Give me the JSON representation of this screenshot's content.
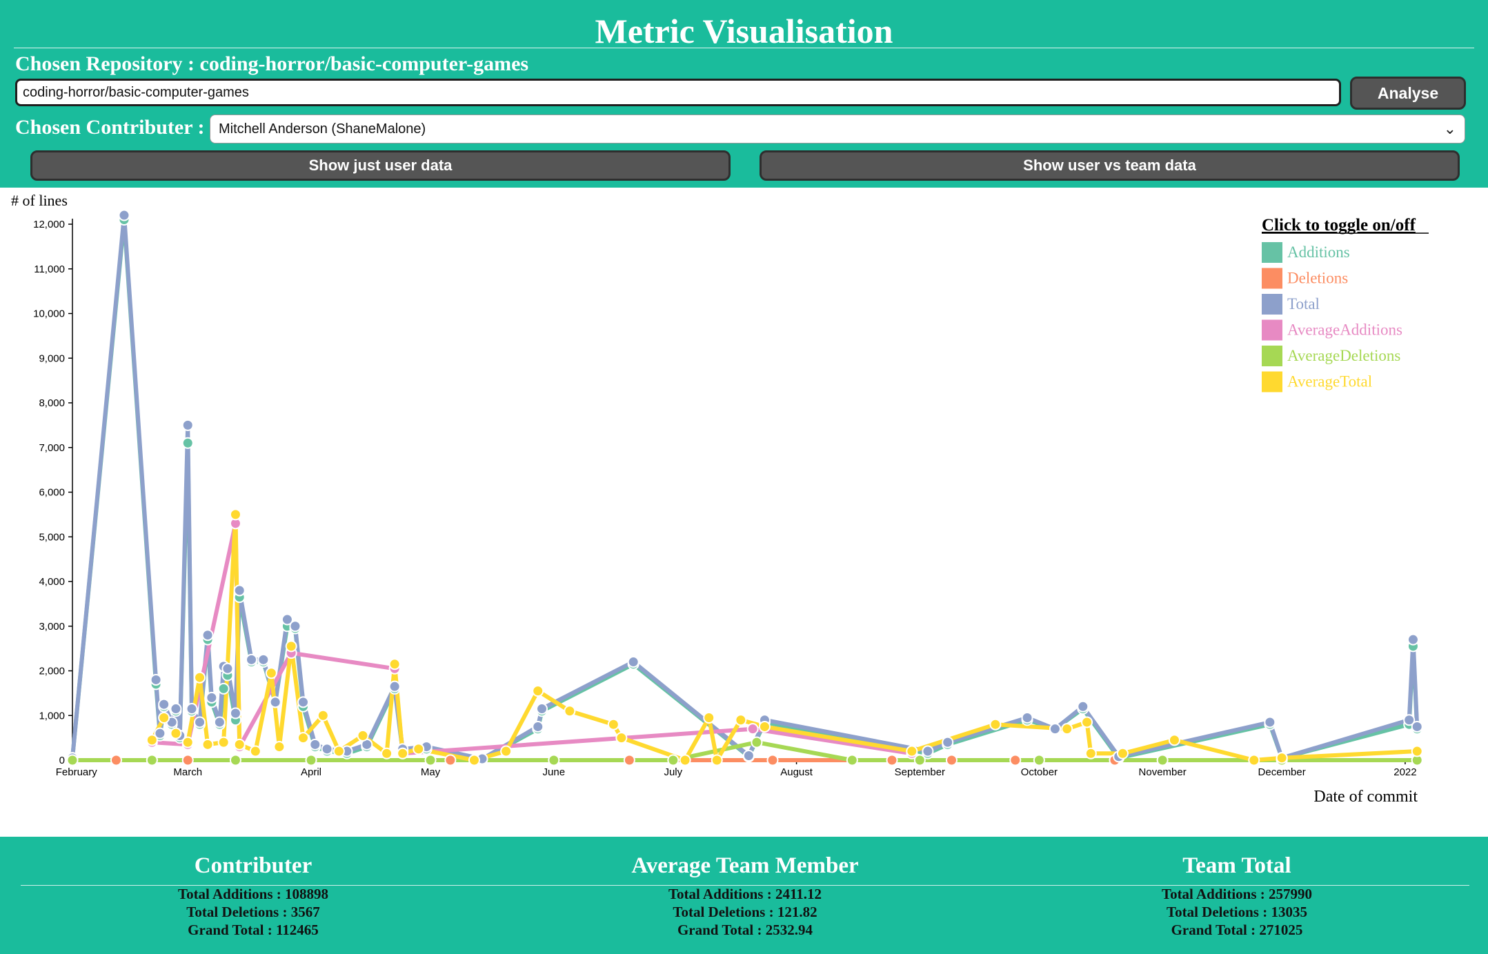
{
  "header": {
    "title": "Metric Visualisation",
    "repo_prefix": "Chosen Repository : ",
    "repo_name": "coding-horror/basic-computer-games",
    "repo_input_value": "coding-horror/basic-computer-games",
    "analyse_label": "Analyse",
    "contributor_label": "Chosen Contributer :",
    "contributor_selected": "Mitchell Anderson (ShaneMalone)",
    "show_user_label": "Show just user data",
    "show_team_label": "Show user vs team data"
  },
  "colors": {
    "accent": "#1abc9c",
    "button": "#555555"
  },
  "chart_data": {
    "type": "line",
    "ylabel": "# of lines",
    "xlabel": "Date of commit",
    "ylim": [
      0,
      12000
    ],
    "yticks": [
      0,
      1000,
      2000,
      3000,
      4000,
      5000,
      6000,
      7000,
      8000,
      9000,
      10000,
      11000,
      12000
    ],
    "x_domain": [
      "2021-01-31",
      "2022-01-05"
    ],
    "x_ticks": [
      {
        "date": "2021-02-01",
        "label": "February"
      },
      {
        "date": "2021-03-01",
        "label": "March"
      },
      {
        "date": "2021-04-01",
        "label": "April"
      },
      {
        "date": "2021-05-01",
        "label": "May"
      },
      {
        "date": "2021-06-01",
        "label": "June"
      },
      {
        "date": "2021-07-01",
        "label": "July"
      },
      {
        "date": "2021-08-01",
        "label": "August"
      },
      {
        "date": "2021-09-01",
        "label": "September"
      },
      {
        "date": "2021-10-01",
        "label": "October"
      },
      {
        "date": "2021-11-01",
        "label": "November"
      },
      {
        "date": "2021-12-01",
        "label": "December"
      },
      {
        "date": "2022-01-01",
        "label": "2022"
      }
    ],
    "legend_title": "Click to toggle on/off",
    "legend_position": "top-right",
    "series": [
      {
        "name": "Additions",
        "color": "#66c2a5",
        "points": [
          [
            "2021-01-31",
            50
          ],
          [
            "2021-02-13",
            12100
          ],
          [
            "2021-02-21",
            1700
          ],
          [
            "2021-02-22",
            550
          ],
          [
            "2021-02-23",
            1200
          ],
          [
            "2021-02-25",
            800
          ],
          [
            "2021-02-26",
            1100
          ],
          [
            "2021-02-27",
            500
          ],
          [
            "2021-03-01",
            7100
          ],
          [
            "2021-03-02",
            1100
          ],
          [
            "2021-03-04",
            800
          ],
          [
            "2021-03-06",
            2700
          ],
          [
            "2021-03-07",
            1300
          ],
          [
            "2021-03-09",
            800
          ],
          [
            "2021-03-10",
            1600
          ],
          [
            "2021-03-11",
            1900
          ],
          [
            "2021-03-13",
            900
          ],
          [
            "2021-03-14",
            3650
          ],
          [
            "2021-03-17",
            2200
          ],
          [
            "2021-03-20",
            2200
          ],
          [
            "2021-03-23",
            1300
          ],
          [
            "2021-03-26",
            3000
          ],
          [
            "2021-03-28",
            2950
          ],
          [
            "2021-03-30",
            1200
          ],
          [
            "2021-04-02",
            300
          ],
          [
            "2021-04-05",
            200
          ],
          [
            "2021-04-10",
            150
          ],
          [
            "2021-04-15",
            300
          ],
          [
            "2021-04-22",
            1600
          ],
          [
            "2021-04-24",
            200
          ],
          [
            "2021-04-30",
            250
          ],
          [
            "2021-05-14",
            20
          ],
          [
            "2021-05-28",
            700
          ],
          [
            "2021-05-29",
            1100
          ],
          [
            "2021-06-21",
            2150
          ],
          [
            "2021-07-20",
            80
          ],
          [
            "2021-07-24",
            850
          ],
          [
            "2021-09-03",
            150
          ],
          [
            "2021-09-08",
            350
          ],
          [
            "2021-09-28",
            900
          ],
          [
            "2021-10-05",
            700
          ],
          [
            "2021-10-12",
            1150
          ],
          [
            "2021-10-21",
            50
          ],
          [
            "2021-11-28",
            800
          ],
          [
            "2021-12-01",
            50
          ],
          [
            "2022-01-02",
            800
          ],
          [
            "2022-01-03",
            2550
          ],
          [
            "2022-01-04",
            700
          ]
        ]
      },
      {
        "name": "Deletions",
        "color": "#fc8d62",
        "points": [
          [
            "2021-01-31",
            0
          ],
          [
            "2021-02-11",
            0
          ],
          [
            "2021-02-20",
            0
          ],
          [
            "2021-03-01",
            0
          ],
          [
            "2021-04-01",
            0
          ],
          [
            "2021-05-06",
            0
          ],
          [
            "2021-06-20",
            0
          ],
          [
            "2021-07-26",
            0
          ],
          [
            "2021-08-25",
            0
          ],
          [
            "2021-09-09",
            0
          ],
          [
            "2021-09-25",
            0
          ],
          [
            "2021-10-20",
            0
          ],
          [
            "2021-12-01",
            0
          ],
          [
            "2022-01-04",
            0
          ]
        ]
      },
      {
        "name": "Total",
        "color": "#8da0cb",
        "points": [
          [
            "2021-01-31",
            50
          ],
          [
            "2021-02-13",
            12200
          ],
          [
            "2021-02-21",
            1800
          ],
          [
            "2021-02-22",
            600
          ],
          [
            "2021-02-23",
            1250
          ],
          [
            "2021-02-25",
            850
          ],
          [
            "2021-02-26",
            1150
          ],
          [
            "2021-02-27",
            550
          ],
          [
            "2021-03-01",
            7500
          ],
          [
            "2021-03-02",
            1150
          ],
          [
            "2021-03-04",
            850
          ],
          [
            "2021-03-06",
            2800
          ],
          [
            "2021-03-07",
            1400
          ],
          [
            "2021-03-09",
            850
          ],
          [
            "2021-03-10",
            2100
          ],
          [
            "2021-03-11",
            2050
          ],
          [
            "2021-03-13",
            1050
          ],
          [
            "2021-03-14",
            3800
          ],
          [
            "2021-03-17",
            2250
          ],
          [
            "2021-03-20",
            2250
          ],
          [
            "2021-03-23",
            1300
          ],
          [
            "2021-03-26",
            3150
          ],
          [
            "2021-03-28",
            3000
          ],
          [
            "2021-03-30",
            1300
          ],
          [
            "2021-04-02",
            350
          ],
          [
            "2021-04-05",
            250
          ],
          [
            "2021-04-10",
            200
          ],
          [
            "2021-04-15",
            350
          ],
          [
            "2021-04-22",
            1650
          ],
          [
            "2021-04-24",
            250
          ],
          [
            "2021-04-30",
            300
          ],
          [
            "2021-05-14",
            30
          ],
          [
            "2021-05-28",
            750
          ],
          [
            "2021-05-29",
            1150
          ],
          [
            "2021-06-21",
            2200
          ],
          [
            "2021-07-20",
            100
          ],
          [
            "2021-07-24",
            900
          ],
          [
            "2021-09-03",
            200
          ],
          [
            "2021-09-08",
            400
          ],
          [
            "2021-09-28",
            950
          ],
          [
            "2021-10-05",
            700
          ],
          [
            "2021-10-12",
            1200
          ],
          [
            "2021-10-21",
            80
          ],
          [
            "2021-11-28",
            850
          ],
          [
            "2021-12-01",
            50
          ],
          [
            "2022-01-02",
            900
          ],
          [
            "2022-01-03",
            2700
          ],
          [
            "2022-01-04",
            750
          ]
        ]
      },
      {
        "name": "AverageAdditions",
        "color": "#e78ac3",
        "points": [
          [
            "2021-02-20",
            400
          ],
          [
            "2021-03-01",
            350
          ],
          [
            "2021-03-13",
            5300
          ],
          [
            "2021-03-14",
            300
          ],
          [
            "2021-03-27",
            2400
          ],
          [
            "2021-04-22",
            2050
          ],
          [
            "2021-04-24",
            150
          ],
          [
            "2021-07-21",
            700
          ],
          [
            "2021-08-30",
            150
          ]
        ]
      },
      {
        "name": "AverageDeletions",
        "color": "#a6d854",
        "points": [
          [
            "2021-01-31",
            0
          ],
          [
            "2021-02-20",
            0
          ],
          [
            "2021-03-13",
            0
          ],
          [
            "2021-04-01",
            0
          ],
          [
            "2021-05-01",
            0
          ],
          [
            "2021-06-01",
            0
          ],
          [
            "2021-07-01",
            0
          ],
          [
            "2021-07-22",
            400
          ],
          [
            "2021-08-15",
            0
          ],
          [
            "2021-09-01",
            0
          ],
          [
            "2021-10-01",
            0
          ],
          [
            "2021-11-01",
            0
          ],
          [
            "2021-12-01",
            0
          ],
          [
            "2022-01-04",
            0
          ]
        ]
      },
      {
        "name": "AverageTotal",
        "color": "#ffd92f",
        "points": [
          [
            "2021-02-20",
            450
          ],
          [
            "2021-02-23",
            950
          ],
          [
            "2021-02-26",
            600
          ],
          [
            "2021-03-01",
            400
          ],
          [
            "2021-03-04",
            1850
          ],
          [
            "2021-03-06",
            350
          ],
          [
            "2021-03-10",
            400
          ],
          [
            "2021-03-13",
            5500
          ],
          [
            "2021-03-14",
            350
          ],
          [
            "2021-03-18",
            200
          ],
          [
            "2021-03-22",
            1950
          ],
          [
            "2021-03-24",
            300
          ],
          [
            "2021-03-27",
            2550
          ],
          [
            "2021-03-30",
            500
          ],
          [
            "2021-04-04",
            1000
          ],
          [
            "2021-04-08",
            200
          ],
          [
            "2021-04-14",
            550
          ],
          [
            "2021-04-20",
            150
          ],
          [
            "2021-04-22",
            2150
          ],
          [
            "2021-04-24",
            150
          ],
          [
            "2021-04-28",
            250
          ],
          [
            "2021-05-12",
            0
          ],
          [
            "2021-05-20",
            200
          ],
          [
            "2021-05-28",
            1550
          ],
          [
            "2021-06-05",
            1100
          ],
          [
            "2021-06-16",
            800
          ],
          [
            "2021-06-18",
            500
          ],
          [
            "2021-07-04",
            0
          ],
          [
            "2021-07-10",
            950
          ],
          [
            "2021-07-12",
            0
          ],
          [
            "2021-07-18",
            900
          ],
          [
            "2021-07-24",
            750
          ],
          [
            "2021-08-30",
            200
          ],
          [
            "2021-09-20",
            800
          ],
          [
            "2021-10-08",
            700
          ],
          [
            "2021-10-13",
            850
          ],
          [
            "2021-10-14",
            150
          ],
          [
            "2021-10-22",
            150
          ],
          [
            "2021-11-04",
            450
          ],
          [
            "2021-11-24",
            0
          ],
          [
            "2021-12-01",
            50
          ],
          [
            "2022-01-04",
            200
          ]
        ]
      }
    ]
  },
  "stats": {
    "contributor": {
      "title": "Contributer",
      "additions": "Total Additions : 108898",
      "deletions": "Total Deletions : 3567",
      "grand_total": "Grand Total : 112465"
    },
    "average": {
      "title": "Average Team Member",
      "additions": "Total Additions : 2411.12",
      "deletions": "Total Deletions : 121.82",
      "grand_total": "Grand Total : 2532.94"
    },
    "team": {
      "title": "Team Total",
      "additions": "Total Additions : 257990",
      "deletions": "Total Deletions : 13035",
      "grand_total": "Grand Total : 271025"
    }
  }
}
